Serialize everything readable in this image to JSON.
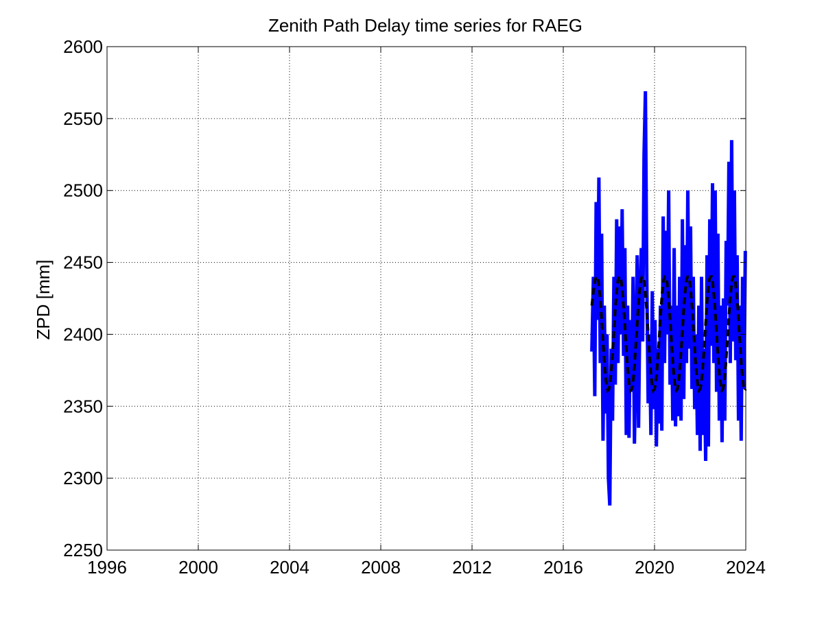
{
  "chart_data": {
    "type": "line",
    "title": "Zenith Path Delay time series for RAEG",
    "xlabel": "",
    "ylabel": "ZPD [mm]",
    "xlim": [
      1996,
      2024
    ],
    "ylim": [
      2250,
      2600
    ],
    "xticks": [
      1996,
      2000,
      2004,
      2008,
      2012,
      2016,
      2020,
      2024
    ],
    "yticks": [
      2250,
      2300,
      2350,
      2400,
      2450,
      2500,
      2550,
      2600
    ],
    "grid": true,
    "colors": {
      "observed": "#0000ff",
      "fit": "#000000"
    },
    "series": [
      {
        "style": "solid",
        "color": "#0000ff",
        "x": [
          2017.25,
          2017.32,
          2017.38,
          2017.44,
          2017.5,
          2017.56,
          2017.62,
          2017.68,
          2017.74,
          2017.8,
          2017.86,
          2017.92,
          2017.98,
          2018.04,
          2018.1,
          2018.16,
          2018.22,
          2018.28,
          2018.34,
          2018.4,
          2018.46,
          2018.52,
          2018.58,
          2018.64,
          2018.7,
          2018.76,
          2018.82,
          2018.88,
          2018.94,
          2019.0,
          2019.06,
          2019.12,
          2019.18,
          2019.24,
          2019.3,
          2019.36,
          2019.42,
          2019.48,
          2019.54,
          2019.6,
          2019.66,
          2019.72,
          2019.78,
          2019.84,
          2019.9,
          2019.96,
          2020.02,
          2020.08,
          2020.14,
          2020.2,
          2020.26,
          2020.32,
          2020.38,
          2020.44,
          2020.5,
          2020.56,
          2020.62,
          2020.68,
          2020.74,
          2020.8,
          2020.86,
          2020.92,
          2020.98,
          2021.04,
          2021.1,
          2021.16,
          2021.22,
          2021.28,
          2021.34,
          2021.4,
          2021.46,
          2021.52,
          2021.58,
          2021.64,
          2021.7,
          2021.76,
          2021.82,
          2021.88,
          2021.94,
          2022.0,
          2022.06,
          2022.12,
          2022.18,
          2022.24,
          2022.3,
          2022.36,
          2022.42,
          2022.48,
          2022.54,
          2022.6,
          2022.66,
          2022.72,
          2022.78,
          2022.84,
          2022.9,
          2022.96,
          2023.02,
          2023.08,
          2023.14,
          2023.2,
          2023.26,
          2023.32,
          2023.38,
          2023.44,
          2023.5,
          2023.56,
          2023.62,
          2023.68,
          2023.74,
          2023.8,
          2023.86,
          2023.92,
          2023.98
        ],
        "y": [
          2388,
          2440,
          2357,
          2492,
          2410,
          2509,
          2380,
          2470,
          2326,
          2420,
          2345,
          2400,
          2300,
          2281,
          2390,
          2340,
          2440,
          2365,
          2480,
          2380,
          2475,
          2400,
          2487,
          2385,
          2460,
          2330,
          2420,
          2328,
          2410,
          2360,
          2440,
          2324,
          2380,
          2455,
          2335,
          2420,
          2460,
          2395,
          2525,
          2569,
          2440,
          2352,
          2400,
          2330,
          2430,
          2348,
          2410,
          2322,
          2390,
          2338,
          2420,
          2333,
          2482,
          2380,
          2472,
          2400,
          2500,
          2365,
          2420,
          2340,
          2460,
          2336,
          2420,
          2343,
          2440,
          2340,
          2480,
          2355,
          2462,
          2380,
          2500,
          2390,
          2475,
          2362,
          2440,
          2348,
          2400,
          2330,
          2420,
          2319,
          2440,
          2330,
          2390,
          2312,
          2455,
          2322,
          2480,
          2392,
          2505,
          2380,
          2500,
          2360,
          2470,
          2340,
          2420,
          2325,
          2425,
          2340,
          2465,
          2420,
          2520,
          2380,
          2535,
          2395,
          2500,
          2382,
          2455,
          2340,
          2420,
          2326,
          2440,
          2362,
          2458
        ]
      },
      {
        "style": "dashed",
        "color": "#000000",
        "x": [
          2017.25,
          2017.3,
          2017.35,
          2017.4,
          2017.45,
          2017.5,
          2017.55,
          2017.6,
          2017.65,
          2017.7,
          2017.75,
          2017.8,
          2017.85,
          2017.9,
          2017.95,
          2018.0,
          2018.05,
          2018.1,
          2018.15,
          2018.2,
          2018.25,
          2018.3,
          2018.35,
          2018.4,
          2018.45,
          2018.5,
          2018.55,
          2018.6,
          2018.65,
          2018.7,
          2018.75,
          2018.8,
          2018.85,
          2018.9,
          2018.95,
          2019.0,
          2019.05,
          2019.1,
          2019.15,
          2019.2,
          2019.25,
          2019.3,
          2019.35,
          2019.4,
          2019.45,
          2019.5,
          2019.55,
          2019.6,
          2019.65,
          2019.7,
          2019.75,
          2019.8,
          2019.85,
          2019.9,
          2019.95,
          2020.0,
          2020.05,
          2020.1,
          2020.15,
          2020.2,
          2020.25,
          2020.3,
          2020.35,
          2020.4,
          2020.45,
          2020.5,
          2020.55,
          2020.6,
          2020.65,
          2020.7,
          2020.75,
          2020.8,
          2020.85,
          2020.9,
          2020.95,
          2021.0,
          2021.05,
          2021.1,
          2021.15,
          2021.2,
          2021.25,
          2021.3,
          2021.35,
          2021.4,
          2021.45,
          2021.5,
          2021.55,
          2021.6,
          2021.65,
          2021.7,
          2021.75,
          2021.8,
          2021.85,
          2021.9,
          2021.95,
          2022.0,
          2022.05,
          2022.1,
          2022.15,
          2022.2,
          2022.25,
          2022.3,
          2022.35,
          2022.4,
          2022.45,
          2022.5,
          2022.55,
          2022.6,
          2022.65,
          2022.7,
          2022.75,
          2022.8,
          2022.85,
          2022.9,
          2022.95,
          2023.0,
          2023.05,
          2023.1,
          2023.15,
          2023.2,
          2023.25,
          2023.3,
          2023.35,
          2023.4,
          2023.45,
          2023.5,
          2023.55,
          2023.6,
          2023.65,
          2023.7,
          2023.75,
          2023.8,
          2023.85,
          2023.9,
          2023.95,
          2024.0
        ],
        "y": [
          2420,
          2427,
          2434,
          2438,
          2440,
          2440,
          2436,
          2428,
          2418,
          2406,
          2393,
          2381,
          2371,
          2364,
          2361,
          2362,
          2366,
          2374,
          2385,
          2397,
          2410,
          2422,
          2431,
          2438,
          2440,
          2440,
          2436,
          2428,
          2418,
          2406,
          2393,
          2381,
          2371,
          2364,
          2361,
          2362,
          2366,
          2374,
          2385,
          2397,
          2410,
          2422,
          2431,
          2438,
          2440,
          2440,
          2436,
          2428,
          2418,
          2406,
          2393,
          2381,
          2371,
          2364,
          2361,
          2362,
          2366,
          2374,
          2385,
          2397,
          2410,
          2422,
          2431,
          2438,
          2440,
          2440,
          2436,
          2428,
          2418,
          2406,
          2393,
          2381,
          2371,
          2364,
          2361,
          2362,
          2366,
          2374,
          2385,
          2397,
          2410,
          2422,
          2431,
          2438,
          2440,
          2440,
          2436,
          2428,
          2418,
          2406,
          2393,
          2381,
          2371,
          2364,
          2361,
          2362,
          2366,
          2374,
          2385,
          2397,
          2410,
          2422,
          2431,
          2438,
          2440,
          2440,
          2436,
          2428,
          2418,
          2406,
          2393,
          2381,
          2371,
          2364,
          2361,
          2362,
          2366,
          2374,
          2385,
          2397,
          2410,
          2422,
          2431,
          2438,
          2440,
          2440,
          2436,
          2428,
          2418,
          2406,
          2393,
          2381,
          2371,
          2364,
          2361,
          2362
        ]
      }
    ]
  }
}
